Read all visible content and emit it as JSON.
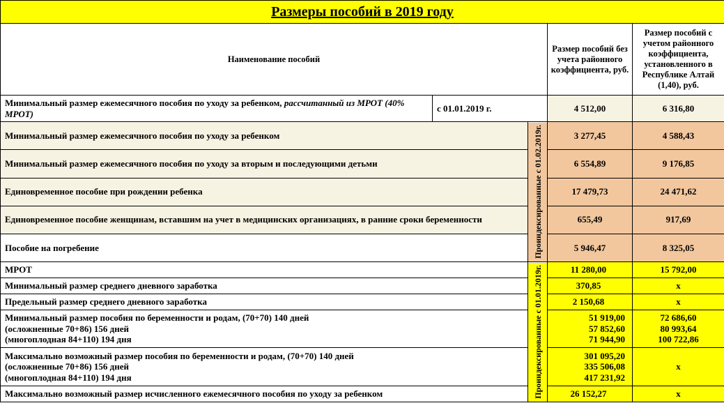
{
  "title": "Размеры пособий в 2019 году",
  "header": {
    "name": "Наименование пособий",
    "val1": "Размер пособий без учета районного коэффициента, руб.",
    "val2": "Размер пособий с учетом районного коэффициента, установленного в Республике Алтай (1,40), руб."
  },
  "row_mrot40": {
    "label_a": "Минимальный размер ежемесячного пособия по уходу за ребенком,",
    "label_b": " рассчитанный из МРОТ (40% МРОТ)",
    "date": "с 01.01.2019 г.",
    "v1": "4 512,00",
    "v2": "6 316,80"
  },
  "vert1": "Проиндексированные с 01.02.2019г.",
  "peach": [
    {
      "label": "Минимальный размер ежемесячного пособия по уходу за ребенком",
      "v1": "3 277,45",
      "v2": "4 588,43"
    },
    {
      "label": "Минимальный размер ежемесячного пособия по уходу за вторым и последующими детьми",
      "v1": "6 554,89",
      "v2": "9 176,85"
    },
    {
      "label": "Единовременное пособие при рождении ребенка",
      "v1": "17 479,73",
      "v2": "24 471,62"
    },
    {
      "label": "Единовременное пособие женщинам, вставшим на учет в медицинских организациях, в ранние сроки беременности",
      "v1": "655,49",
      "v2": "917,69"
    }
  ],
  "funeral": {
    "label": "Пособие на погребение",
    "v1": "5 946,47",
    "v2": "8 325,05"
  },
  "vert2": "Проиндексированные с 01.01.2019г.",
  "yellow_simple": [
    {
      "label": "МРОТ",
      "v1": "11 280,00",
      "v2": "15 792,00"
    },
    {
      "label": "Минимальный размер среднего дневного заработка",
      "v1": "370,85",
      "v2": "x"
    },
    {
      "label": "Предельный размер среднего дневного заработка",
      "v1": "2 150,68",
      "v2": "x"
    }
  ],
  "min_preg": {
    "l1": "Минимальный  размер пособия по беременности и родам, (70+70) 140 дней",
    "l2": "(осложненные 70+86) 156 дней",
    "l3": "(многоплодная 84+110) 194 дня",
    "v1a": "51 919,00",
    "v2a": "72 686,60",
    "v1b": "57 852,60",
    "v2b": "80 993,64",
    "v1c": "71 944,90",
    "v2c": "100 722,86"
  },
  "max_preg": {
    "l1": "Максимально возможный размер пособия по беременности и родам,  (70+70) 140 дней",
    "l2": "(осложненные 70+86) 156 дней",
    "l3": "(многоплодная 84+110) 194 дня",
    "v1a": "301 095,20",
    "v1b": "335 506,08",
    "v1c": "417 231,92",
    "v2": "x"
  },
  "max_care": {
    "label": "Максимально возможный размер исчисленного ежемесячного пособия по уходу за ребенком",
    "v1": "26 152,27",
    "v2": "x"
  },
  "colors": {
    "title_bg": "#ffff00",
    "cream_bg": "#f7f3e3",
    "peach_bg": "#f2c79e",
    "yellow_bg": "#ffff00",
    "border": "#000000"
  }
}
